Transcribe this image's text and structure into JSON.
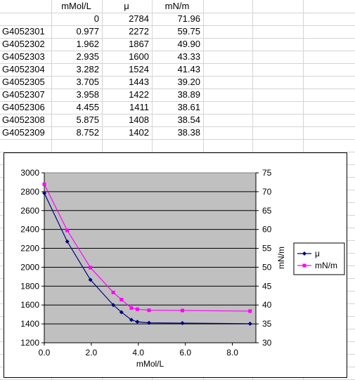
{
  "table": {
    "headers": [
      "mMol/L",
      "μ",
      "mN/m"
    ],
    "first_row": [
      "",
      "0",
      "2784",
      "71.96"
    ],
    "rows": [
      [
        "G4052301",
        "0.977",
        "2272",
        "59.75"
      ],
      [
        "G4052302",
        "1.962",
        "1867",
        "49.90"
      ],
      [
        "G4052303",
        "2.935",
        "1600",
        "43.33"
      ],
      [
        "G4052304",
        "3.282",
        "1524",
        "41.43"
      ],
      [
        "G4052305",
        "3.705",
        "1443",
        "39.20"
      ],
      [
        "G4052307",
        "3.958",
        "1422",
        "38.89"
      ],
      [
        "G4052306",
        "4.455",
        "1411",
        "38.61"
      ],
      [
        "G4052308",
        "5.875",
        "1408",
        "38.54"
      ],
      [
        "G4052309",
        "8.752",
        "1402",
        "38.38"
      ]
    ]
  },
  "chart_data": {
    "type": "line",
    "xlabel": "mMol/L",
    "ylabel": "",
    "y2label": "mN/m",
    "xlim": [
      0,
      9
    ],
    "ylim": [
      1200,
      3000
    ],
    "y2lim": [
      30,
      75
    ],
    "x_ticks": [
      "0.0",
      "2.0",
      "4.0",
      "6.0",
      "8.0"
    ],
    "x_tick_values": [
      0,
      2,
      4,
      6,
      8
    ],
    "y_ticks": [
      "1200",
      "1400",
      "1600",
      "1800",
      "2000",
      "2200",
      "2400",
      "2600",
      "2800",
      "3000"
    ],
    "y2_ticks": [
      "30",
      "35",
      "40",
      "45",
      "50",
      "55",
      "60",
      "65",
      "70",
      "75"
    ],
    "plot_background": "#c0c0c0",
    "legend_position": "right",
    "series": [
      {
        "name": "μ",
        "axis": "left",
        "color": "#000080",
        "marker": "diamond",
        "x": [
          0,
          0.977,
          1.962,
          2.935,
          3.282,
          3.705,
          3.958,
          4.455,
          5.875,
          8.752
        ],
        "y": [
          2784,
          2272,
          1867,
          1600,
          1524,
          1443,
          1422,
          1411,
          1408,
          1402
        ]
      },
      {
        "name": "mN/m",
        "axis": "right",
        "color": "#ff00ff",
        "marker": "square",
        "x": [
          0,
          0.977,
          1.962,
          2.935,
          3.282,
          3.705,
          3.958,
          4.455,
          5.875,
          8.752
        ],
        "y": [
          71.96,
          59.75,
          49.9,
          43.33,
          41.43,
          39.2,
          38.89,
          38.61,
          38.54,
          38.38
        ]
      }
    ]
  }
}
